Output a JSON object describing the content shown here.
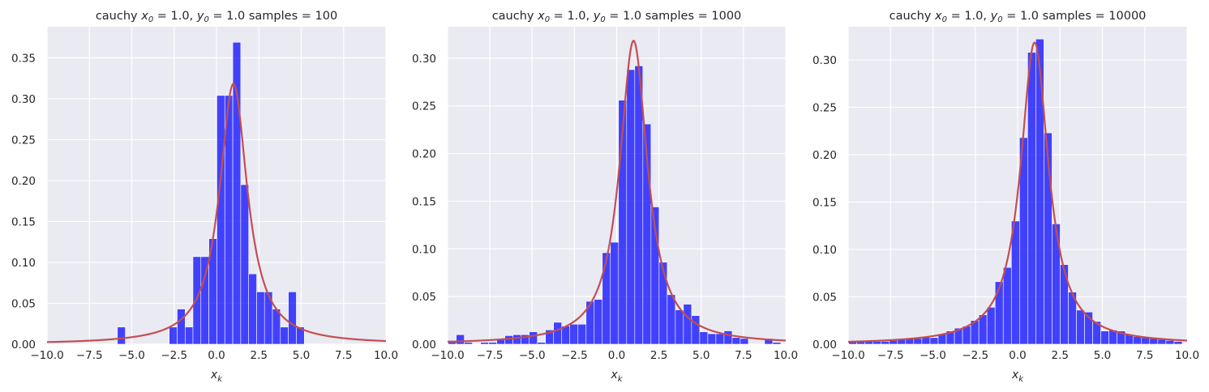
{
  "chart_data": [
    {
      "type": "bar",
      "title_prefix": "cauchy ",
      "title_var_x": "x",
      "title_sub_x": "0",
      "title_val_x": " = 1.0, ",
      "title_var_y": "y",
      "title_sub_y": "0",
      "title_val_y": " = 1.0  samples = 100",
      "xlabel": "x",
      "xlabel_sub": "k",
      "xlim": [
        -10,
        10
      ],
      "ylim": [
        0,
        0.388
      ],
      "xticks": [
        "−10.0",
        "−7.5",
        "−5.0",
        "−2.5",
        "0.0",
        "2.5",
        "5.0",
        "7.5",
        "10.0"
      ],
      "xtick_values": [
        -10,
        -7.5,
        -5,
        -2.5,
        0,
        2.5,
        5,
        7.5,
        10
      ],
      "yticks": [
        "0.00",
        "0.05",
        "0.10",
        "0.15",
        "0.20",
        "0.25",
        "0.30",
        "0.35"
      ],
      "ytick_values": [
        0,
        0.05,
        0.1,
        0.15,
        0.2,
        0.25,
        0.3,
        0.35
      ],
      "bin_width": 0.47,
      "bins_x": [
        -5.85,
        -2.79,
        -2.32,
        -1.85,
        -1.39,
        -0.92,
        -0.45,
        0.02,
        0.49,
        0.96,
        1.43,
        1.9,
        2.37,
        2.83,
        3.3,
        3.77,
        4.24,
        4.71,
        5.18
      ],
      "bins_y": [
        0.021,
        0.021,
        0.043,
        0.021,
        0.107,
        0.107,
        0.129,
        0.304,
        0.304,
        0.369,
        0.195,
        0.086,
        0.064,
        0.064,
        0.043,
        0.021,
        0.064,
        0.021,
        0.0
      ],
      "curve": {
        "x0": 1.0,
        "gamma": 1.0
      }
    },
    {
      "type": "bar",
      "title_prefix": "cauchy ",
      "title_var_x": "x",
      "title_sub_x": "0",
      "title_val_x": " = 1.0, ",
      "title_var_y": "y",
      "title_sub_y": "0",
      "title_val_y": " = 1.0  samples = 1000",
      "xlabel": "x",
      "xlabel_sub": "k",
      "xlim": [
        -10,
        10
      ],
      "ylim": [
        0,
        0.333
      ],
      "xticks": [
        "−10.0",
        "−7.5",
        "−5.0",
        "−2.5",
        "0.0",
        "2.5",
        "5.0",
        "7.5",
        "10.0"
      ],
      "xtick_values": [
        -10,
        -7.5,
        -5,
        -2.5,
        0,
        2.5,
        5,
        7.5,
        10
      ],
      "yticks": [
        "0.00",
        "0.05",
        "0.10",
        "0.15",
        "0.20",
        "0.25",
        "0.30"
      ],
      "ytick_values": [
        0,
        0.05,
        0.1,
        0.15,
        0.2,
        0.25,
        0.3
      ],
      "bin_width": 0.48,
      "bins_x": [
        -9.97,
        -9.49,
        -9.01,
        -8.53,
        -8.05,
        -7.57,
        -7.09,
        -6.61,
        -6.13,
        -5.65,
        -5.17,
        -4.69,
        -4.21,
        -3.73,
        -3.25,
        -2.77,
        -2.29,
        -1.81,
        -1.33,
        -0.85,
        -0.37,
        0.11,
        0.59,
        1.07,
        1.55,
        2.03,
        2.51,
        2.99,
        3.47,
        3.95,
        4.43,
        4.91,
        5.39,
        5.87,
        6.35,
        6.83,
        7.31,
        7.79,
        8.27,
        8.75,
        9.23
      ],
      "bins_y": [
        0.004,
        0.01,
        0.002,
        0.0,
        0.002,
        0.002,
        0.005,
        0.009,
        0.01,
        0.01,
        0.013,
        0.002,
        0.015,
        0.023,
        0.019,
        0.021,
        0.021,
        0.045,
        0.047,
        0.096,
        0.107,
        0.256,
        0.288,
        0.292,
        0.231,
        0.144,
        0.086,
        0.052,
        0.036,
        0.042,
        0.03,
        0.013,
        0.011,
        0.011,
        0.014,
        0.007,
        0.006,
        0.0,
        0.0,
        0.006,
        0.002
      ],
      "curve": {
        "x0": 1.0,
        "gamma": 1.0
      }
    },
    {
      "type": "bar",
      "title_prefix": "cauchy ",
      "title_var_x": "x",
      "title_sub_x": "0",
      "title_val_x": " = 1.0, ",
      "title_var_y": "y",
      "title_sub_y": "0",
      "title_val_y": " = 1.0  samples = 10000",
      "xlabel": "x",
      "xlabel_sub": "k",
      "xlim": [
        -10,
        10
      ],
      "ylim": [
        0,
        0.335
      ],
      "xticks": [
        "−10.0",
        "−7.5",
        "−5.0",
        "−2.5",
        "0.0",
        "2.5",
        "5.0",
        "7.5",
        "10.0"
      ],
      "xtick_values": [
        -10,
        -7.5,
        -5,
        -2.5,
        0,
        2.5,
        5,
        7.5,
        10
      ],
      "yticks": [
        "0.00",
        "0.05",
        "0.10",
        "0.15",
        "0.20",
        "0.25",
        "0.30"
      ],
      "ytick_values": [
        0,
        0.05,
        0.1,
        0.15,
        0.2,
        0.25,
        0.3
      ],
      "bin_width": 0.48,
      "bins_x": [
        -9.97,
        -9.49,
        -9.01,
        -8.53,
        -8.05,
        -7.57,
        -7.09,
        -6.61,
        -6.13,
        -5.65,
        -5.17,
        -4.69,
        -4.21,
        -3.73,
        -3.25,
        -2.77,
        -2.29,
        -1.81,
        -1.33,
        -0.85,
        -0.37,
        0.11,
        0.59,
        1.07,
        1.55,
        2.03,
        2.51,
        2.99,
        3.47,
        3.95,
        4.43,
        4.91,
        5.39,
        5.87,
        6.35,
        6.83,
        7.31,
        7.79,
        8.27,
        8.75,
        9.23
      ],
      "bins_y": [
        0.003,
        0.003,
        0.003,
        0.003,
        0.003,
        0.004,
        0.005,
        0.006,
        0.006,
        0.008,
        0.007,
        0.011,
        0.014,
        0.017,
        0.019,
        0.025,
        0.031,
        0.039,
        0.066,
        0.081,
        0.13,
        0.218,
        0.308,
        0.322,
        0.223,
        0.127,
        0.084,
        0.055,
        0.036,
        0.034,
        0.024,
        0.014,
        0.015,
        0.014,
        0.01,
        0.008,
        0.007,
        0.006,
        0.005,
        0.004,
        0.003
      ],
      "curve": {
        "x0": 1.0,
        "gamma": 1.0
      }
    }
  ]
}
